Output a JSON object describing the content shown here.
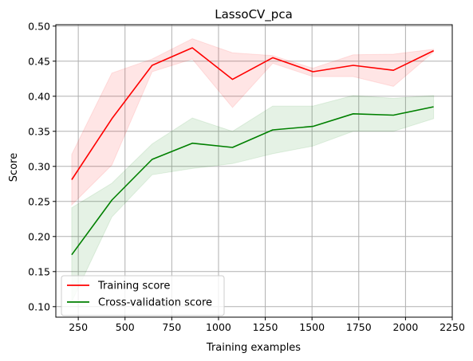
{
  "chart_data": {
    "type": "line",
    "title": "LassoCV_pca",
    "xlabel": "Training examples",
    "ylabel": "Score",
    "xlim": [
      130,
      2250
    ],
    "ylim": [
      0.085,
      0.502
    ],
    "xticks": [
      250,
      500,
      750,
      1000,
      1250,
      1500,
      1750,
      2000,
      2250
    ],
    "yticks": [
      0.1,
      0.15,
      0.2,
      0.25,
      0.3,
      0.35,
      0.4,
      0.45,
      0.5
    ],
    "xtick_labels": [
      "250",
      "500",
      "750",
      "1000",
      "1250",
      "1500",
      "1750",
      "2000",
      "2250"
    ],
    "ytick_labels": [
      "0.10",
      "0.15",
      "0.20",
      "0.25",
      "0.30",
      "0.35",
      "0.40",
      "0.45",
      "0.50"
    ],
    "grid": true,
    "legend_position": "lower-left",
    "x": [
      215,
      430,
      645,
      860,
      1075,
      1290,
      1505,
      1720,
      1935,
      2150
    ],
    "series": [
      {
        "name": "Training score",
        "color": "#ff0000",
        "band_color": "#ff0000",
        "values": [
          0.281,
          0.368,
          0.444,
          0.469,
          0.424,
          0.455,
          0.435,
          0.444,
          0.437,
          0.465
        ],
        "lower": [
          0.245,
          0.302,
          0.435,
          0.453,
          0.384,
          0.447,
          0.428,
          0.428,
          0.414,
          0.463
        ],
        "upper": [
          0.317,
          0.433,
          0.453,
          0.482,
          0.462,
          0.458,
          0.44,
          0.459,
          0.46,
          0.467
        ]
      },
      {
        "name": "Cross-validation score",
        "color": "#008000",
        "band_color": "#008000",
        "values": [
          0.174,
          0.252,
          0.31,
          0.333,
          0.327,
          0.352,
          0.357,
          0.375,
          0.373,
          0.385
        ],
        "lower": [
          0.107,
          0.228,
          0.288,
          0.297,
          0.304,
          0.318,
          0.329,
          0.35,
          0.35,
          0.368
        ],
        "upper": [
          0.241,
          0.276,
          0.332,
          0.369,
          0.35,
          0.386,
          0.386,
          0.401,
          0.397,
          0.401
        ]
      }
    ]
  }
}
